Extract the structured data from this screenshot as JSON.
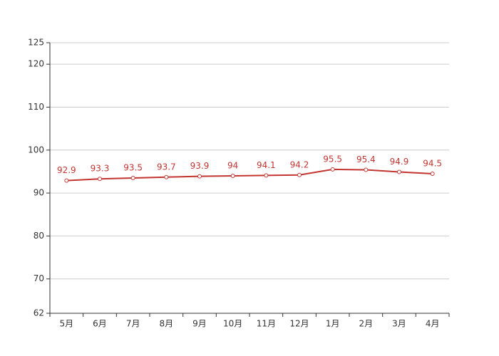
{
  "chart_data": {
    "type": "line",
    "categories": [
      "5月",
      "6月",
      "7月",
      "8月",
      "9月",
      "10月",
      "11月",
      "12月",
      "1月",
      "2月",
      "3月",
      "4月"
    ],
    "values": [
      92.9,
      93.3,
      93.5,
      93.7,
      93.9,
      94,
      94.1,
      94.2,
      95.5,
      95.4,
      94.9,
      94.5
    ],
    "color": "#c23531",
    "ylim": [
      62,
      125
    ],
    "yticks": [
      62,
      70,
      80,
      90,
      100,
      110,
      120,
      125
    ],
    "grid": true
  }
}
